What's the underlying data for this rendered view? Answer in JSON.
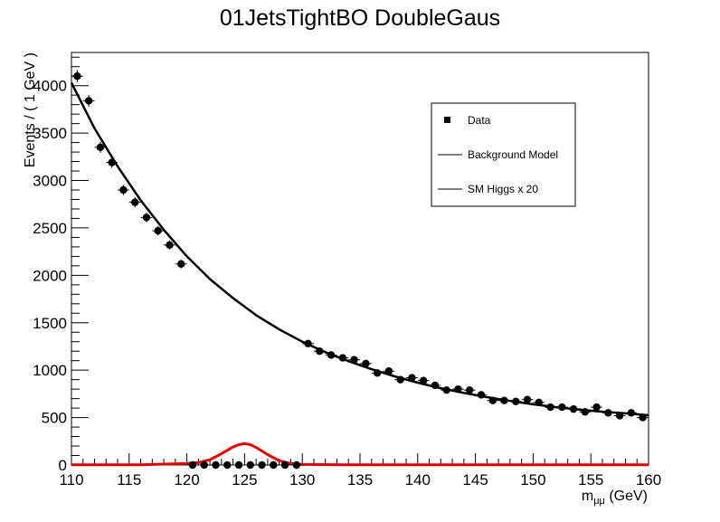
{
  "chart_data": {
    "type": "scatter",
    "title": "01JetsTightBO DoubleGaus",
    "xlabel": "m_{μμ} (GeV)",
    "xlabel_main": "m",
    "xlabel_sub": "μμ",
    "xlabel_unit": " (GeV)",
    "ylabel": "Events / ( 1 GeV )",
    "xlim": [
      110,
      160
    ],
    "ylim": [
      0,
      4350
    ],
    "xticks": [
      110,
      115,
      120,
      125,
      130,
      135,
      140,
      145,
      150,
      155,
      160
    ],
    "yticks": [
      0,
      500,
      1000,
      1500,
      2000,
      2500,
      3000,
      3500,
      4000
    ],
    "grid": false,
    "legend_position": "top-right",
    "legend": [
      {
        "name": "Data",
        "symbol": "marker",
        "color": "#000000"
      },
      {
        "name": "Background Model",
        "symbol": "line",
        "color": "#000000"
      },
      {
        "name": "SM Higgs x 20",
        "symbol": "line",
        "color": "#000000"
      }
    ],
    "series": [
      {
        "name": "Data",
        "kind": "points",
        "color": "#000000",
        "x": [
          110.5,
          111.5,
          112.5,
          113.5,
          114.5,
          115.5,
          116.5,
          117.5,
          118.5,
          119.5,
          120.5,
          121.5,
          122.5,
          123.5,
          124.5,
          125.5,
          126.5,
          127.5,
          128.5,
          129.5,
          130.5,
          131.5,
          132.5,
          133.5,
          134.5,
          135.5,
          136.5,
          137.5,
          138.5,
          139.5,
          140.5,
          141.5,
          142.5,
          143.5,
          144.5,
          145.5,
          146.5,
          147.5,
          148.5,
          149.5,
          150.5,
          151.5,
          152.5,
          153.5,
          154.5,
          155.5,
          156.5,
          157.5,
          158.5,
          159.5
        ],
        "y": [
          4100,
          3840,
          3350,
          3190,
          2900,
          2770,
          2610,
          2470,
          2320,
          2120,
          0,
          0,
          0,
          0,
          0,
          0,
          0,
          0,
          0,
          0,
          1280,
          1200,
          1160,
          1130,
          1110,
          1070,
          970,
          990,
          900,
          920,
          890,
          840,
          790,
          800,
          790,
          740,
          680,
          680,
          670,
          690,
          660,
          610,
          610,
          590,
          560,
          610,
          550,
          520,
          550,
          500
        ],
        "yerr": [
          64,
          62,
          58,
          56,
          54,
          53,
          51,
          50,
          48,
          46,
          0,
          0,
          0,
          0,
          0,
          0,
          0,
          0,
          0,
          0,
          36,
          35,
          34,
          34,
          33,
          33,
          31,
          31,
          30,
          30,
          30,
          29,
          28,
          28,
          28,
          27,
          26,
          26,
          26,
          26,
          26,
          25,
          25,
          24,
          24,
          25,
          23,
          23,
          23,
          22
        ]
      },
      {
        "name": "Background Model",
        "kind": "curve",
        "color": "#000000",
        "x": [
          110,
          112,
          114,
          116,
          118,
          120,
          122,
          124,
          126,
          128,
          130,
          132,
          134,
          136,
          138,
          140,
          142,
          144,
          146,
          148,
          150,
          152,
          154,
          156,
          158,
          160
        ],
        "y": [
          4030,
          3550,
          3150,
          2790,
          2480,
          2200,
          1960,
          1760,
          1580,
          1430,
          1300,
          1190,
          1095,
          1010,
          935,
          868,
          810,
          760,
          715,
          675,
          640,
          610,
          585,
          562,
          545,
          525
        ]
      },
      {
        "name": "SM Higgs x 20",
        "kind": "curve",
        "color": "#e00000",
        "x": [
          110,
          116,
          118,
          120,
          121,
          122,
          123,
          124,
          124.5,
          125,
          125.5,
          126,
          127,
          128,
          129,
          130,
          135,
          160
        ],
        "y": [
          2,
          3,
          10,
          15,
          25,
          55,
          120,
          190,
          215,
          225,
          215,
          185,
          110,
          45,
          15,
          6,
          2,
          2
        ]
      }
    ]
  }
}
